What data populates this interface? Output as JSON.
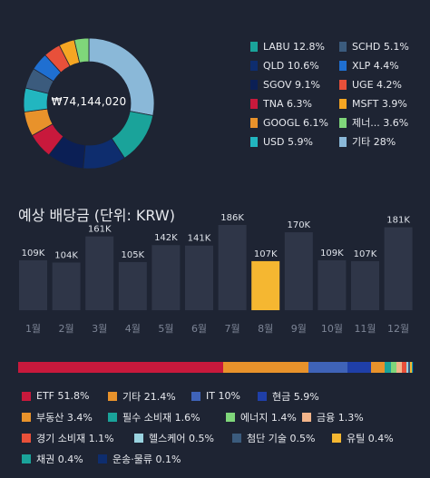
{
  "donut": {
    "center_label": "₩74,144,020",
    "legend": [
      {
        "label": "LABU 12.8%",
        "color": "#1aa39a"
      },
      {
        "label": "SCHD 5.1%",
        "color": "#3b5b7d"
      },
      {
        "label": "QLD 10.6%",
        "color": "#0e2d6e"
      },
      {
        "label": "XLP 4.4%",
        "color": "#1f6fd1"
      },
      {
        "label": "SGOV 9.1%",
        "color": "#0b1f55"
      },
      {
        "label": "UGE 4.2%",
        "color": "#e8503a"
      },
      {
        "label": "TNA 6.3%",
        "color": "#c8193c"
      },
      {
        "label": "MSFT 3.9%",
        "color": "#f5a623"
      },
      {
        "label": "GOOGL 6.1%",
        "color": "#e8922b"
      },
      {
        "label": "제너... 3.6%",
        "color": "#7fd67a"
      },
      {
        "label": "USD 5.9%",
        "color": "#22b6c0"
      },
      {
        "label": "기타 28%",
        "color": "#8ab8d8"
      }
    ]
  },
  "dividend_title": "예상 배당금 (단위: KRW)",
  "chart_data": {
    "type": "bar",
    "title": "예상 배당금 (단위: KRW)",
    "categories": [
      "1월",
      "2월",
      "3월",
      "4월",
      "5월",
      "6월",
      "7월",
      "8월",
      "9월",
      "10월",
      "11월",
      "12월"
    ],
    "values": [
      109,
      104,
      161,
      105,
      142,
      141,
      186,
      107,
      170,
      109,
      107,
      181
    ],
    "value_labels": [
      "109K",
      "104K",
      "161K",
      "105K",
      "142K",
      "141K",
      "186K",
      "107K",
      "170K",
      "109K",
      "107K",
      "181K"
    ],
    "unit": "K KRW",
    "highlight_index": 7,
    "colors": {
      "bar": "#2f3648",
      "highlight": "#f5b731",
      "label": "#dfe3ea",
      "month": "#7d8596"
    }
  },
  "allocation": {
    "segments": [
      {
        "label": "ETF 51.8%",
        "value": 51.8,
        "color": "#c8193c"
      },
      {
        "label": "기타 21.4%",
        "value": 21.4,
        "color": "#e8922b"
      },
      {
        "label": "IT 10%",
        "value": 10,
        "color": "#3f63b8"
      },
      {
        "label": "현금 5.9%",
        "value": 5.9,
        "color": "#1f3fa8"
      },
      {
        "label": "부동산 3.4%",
        "value": 3.4,
        "color": "#e8922b"
      },
      {
        "label": "필수 소비재 1.6%",
        "value": 1.6,
        "color": "#1aa39a"
      },
      {
        "label": "에너지 1.4%",
        "value": 1.4,
        "color": "#7fd67a"
      },
      {
        "label": "금융 1.3%",
        "value": 1.3,
        "color": "#f2b48a"
      },
      {
        "label": "경기 소비재 1.1%",
        "value": 1.1,
        "color": "#e8503a"
      },
      {
        "label": "헬스케어 0.5%",
        "value": 0.5,
        "color": "#9ad3e0"
      },
      {
        "label": "첨단 기술 0.5%",
        "value": 0.5,
        "color": "#3b5b7d"
      },
      {
        "label": "유틸 0.4%",
        "value": 0.4,
        "color": "#f5b731"
      },
      {
        "label": "채권 0.4%",
        "value": 0.4,
        "color": "#1aa39a"
      },
      {
        "label": "운송·물류 0.1%",
        "value": 0.1,
        "color": "#0e2d6e"
      }
    ]
  }
}
